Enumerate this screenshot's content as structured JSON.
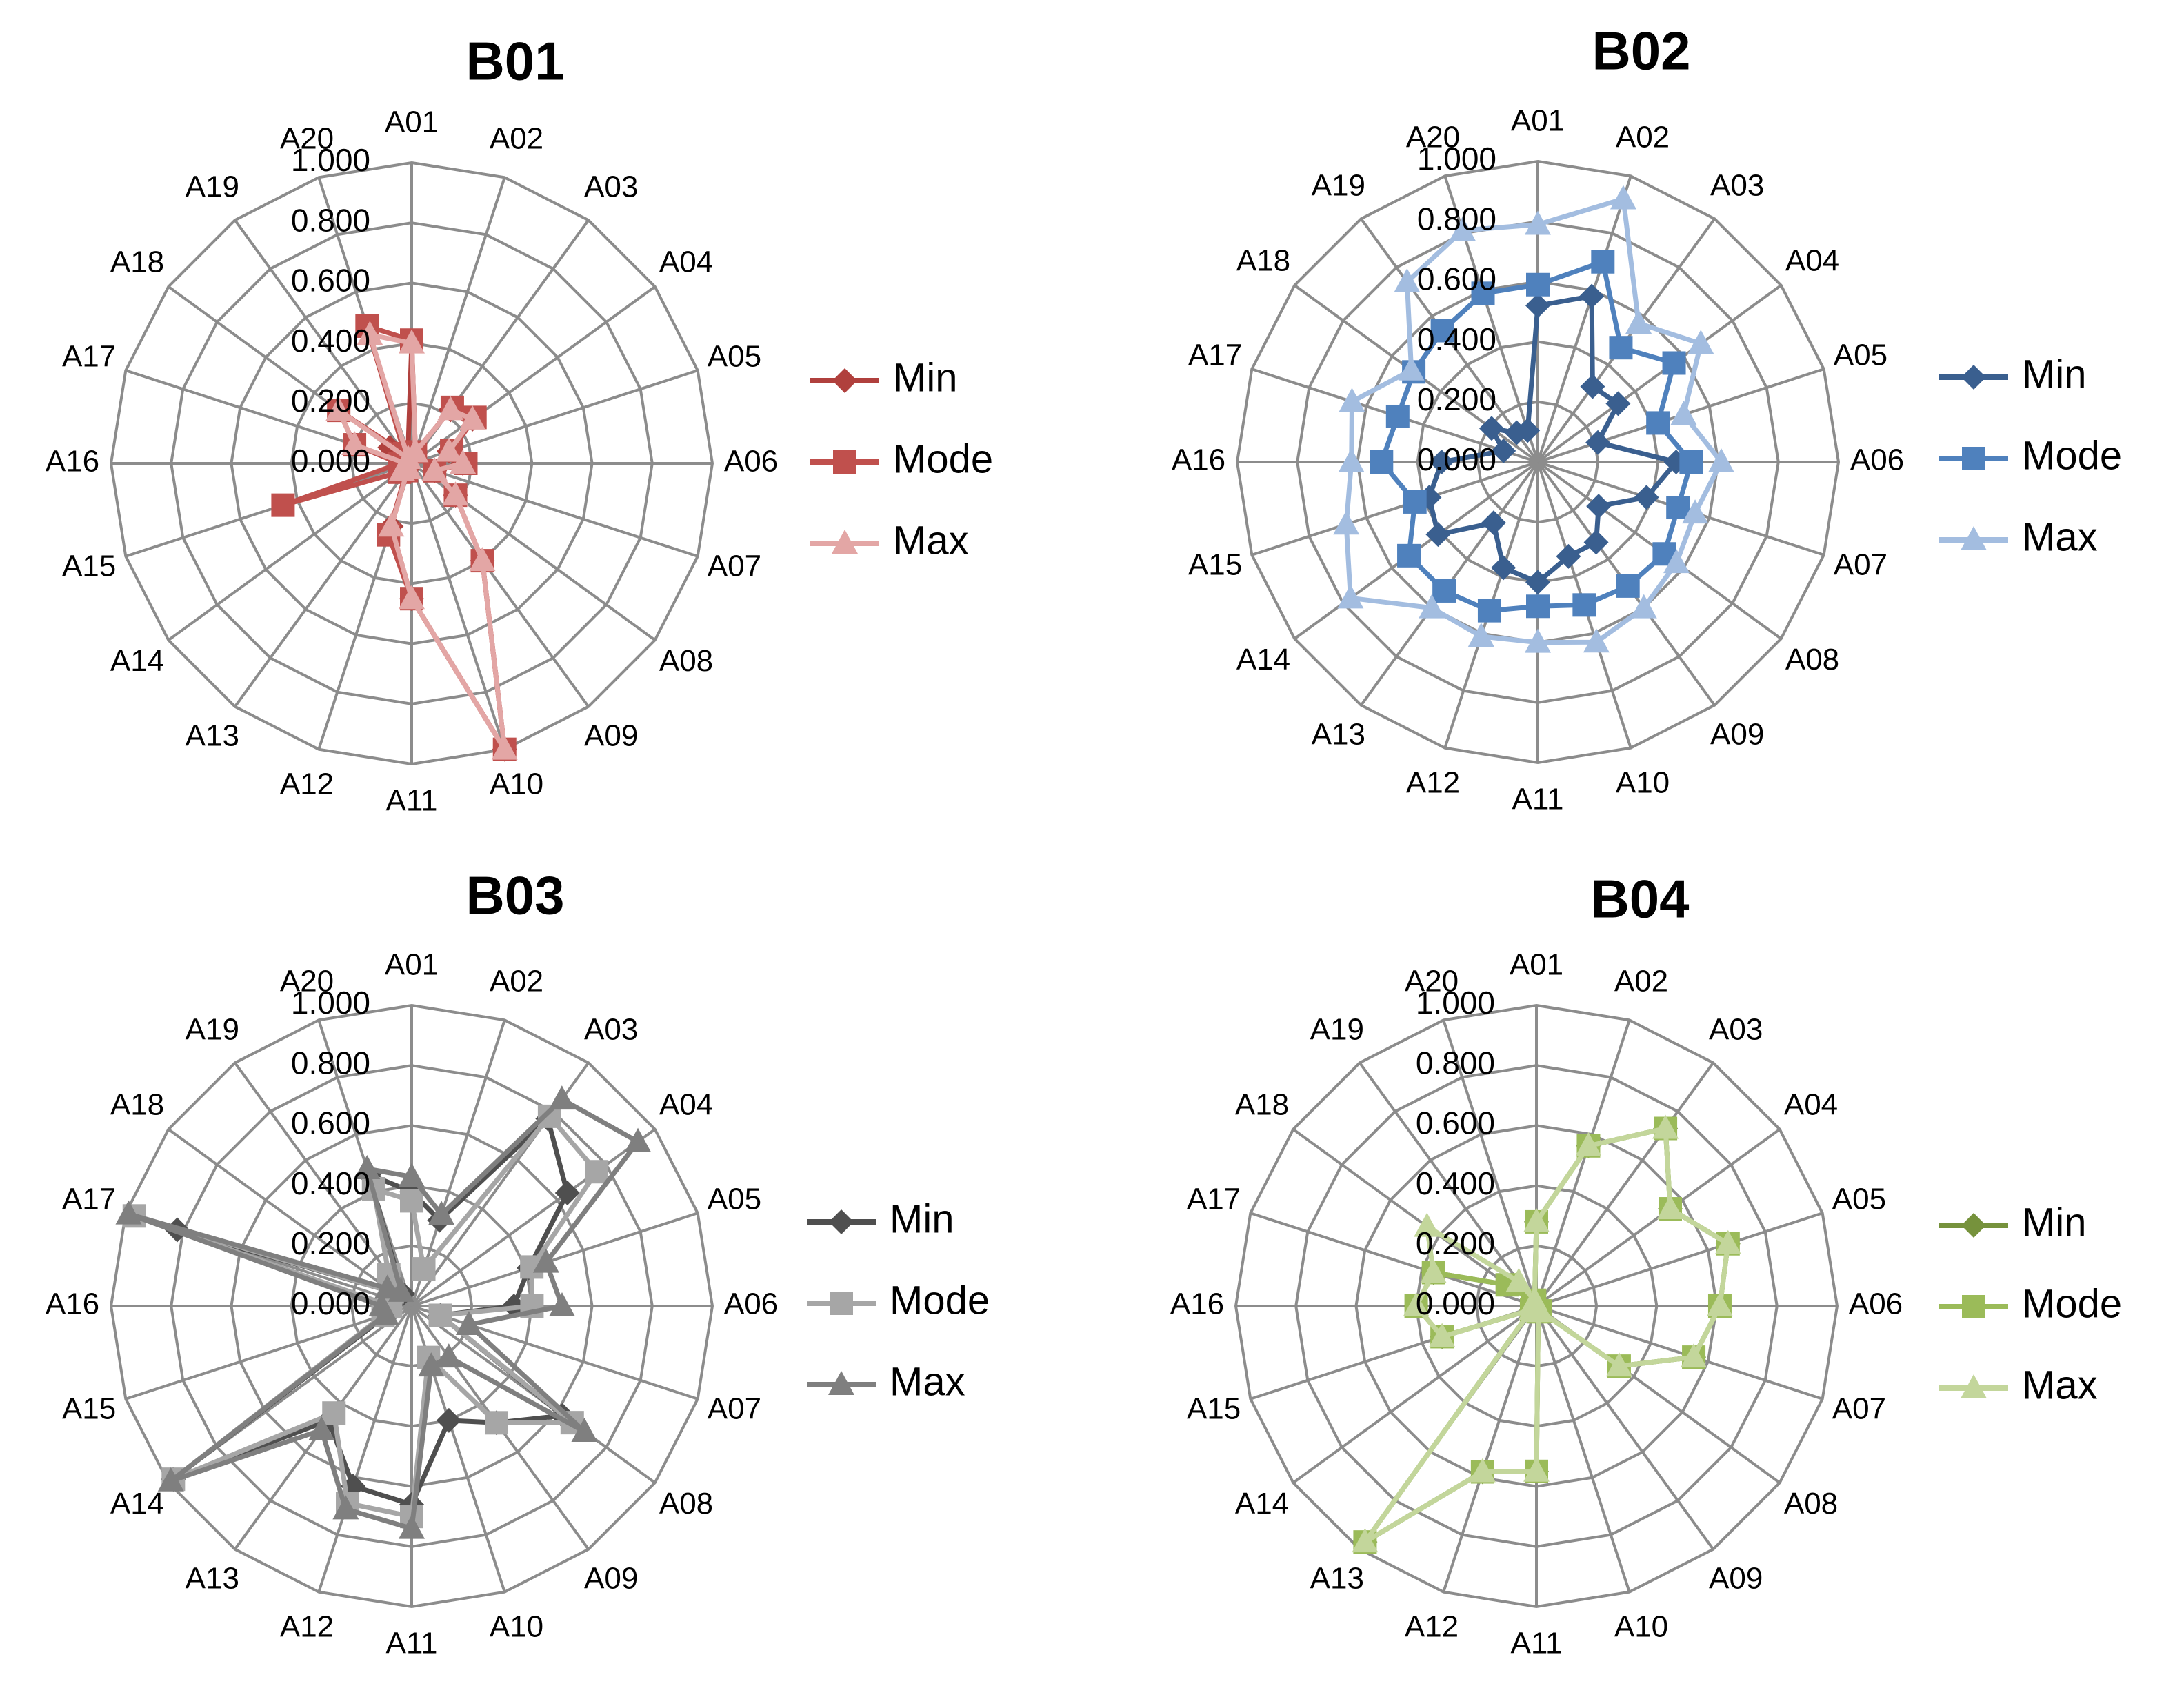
{
  "chart_data": [
    {
      "type": "radar",
      "title": "B01",
      "categories": [
        "A01",
        "A02",
        "A03",
        "A04",
        "A05",
        "A06",
        "A07",
        "A08",
        "A09",
        "A10",
        "A11",
        "A12",
        "A13",
        "A14",
        "A15",
        "A16",
        "A17",
        "A18",
        "A19",
        "A20"
      ],
      "ylim": [
        0,
        1
      ],
      "ticks": [
        "0.000",
        "0.200",
        "0.400",
        "0.600",
        "0.800",
        "1.000"
      ],
      "grid": true,
      "legend": "right",
      "series": [
        {
          "name": "Min",
          "marker": "diamond",
          "color": "#b0403d",
          "values": [
            0.4,
            0.04,
            0.22,
            0.25,
            0.13,
            0.17,
            0.08,
            0.18,
            0.4,
            1.0,
            0.45,
            0.22,
            0.02,
            0.04,
            0.03,
            0.02,
            0.02,
            0.09,
            0.02,
            0.04
          ]
        },
        {
          "name": "Mode",
          "marker": "square",
          "color": "#c0504d",
          "values": [
            0.41,
            0.04,
            0.23,
            0.26,
            0.14,
            0.18,
            0.08,
            0.18,
            0.4,
            1.0,
            0.45,
            0.25,
            0.03,
            0.05,
            0.45,
            0.04,
            0.2,
            0.3,
            0.04,
            0.48
          ]
        },
        {
          "name": "Max",
          "marker": "triangle",
          "color": "#e3a6a5",
          "values": [
            0.4,
            0.04,
            0.22,
            0.25,
            0.13,
            0.17,
            0.08,
            0.18,
            0.4,
            1.0,
            0.45,
            0.22,
            0.02,
            0.04,
            0.02,
            0.02,
            0.2,
            0.3,
            0.02,
            0.45
          ]
        }
      ]
    },
    {
      "type": "radar",
      "title": "B02",
      "categories": [
        "A01",
        "A02",
        "A03",
        "A04",
        "A05",
        "A06",
        "A07",
        "A08",
        "A09",
        "A10",
        "A11",
        "A12",
        "A13",
        "A14",
        "A15",
        "A16",
        "A17",
        "A18",
        "A19",
        "A20"
      ],
      "ylim": [
        0,
        1
      ],
      "ticks": [
        "0.000",
        "0.200",
        "0.400",
        "0.600",
        "0.800",
        "1.000"
      ],
      "grid": true,
      "legend": "right",
      "series": [
        {
          "name": "Min",
          "marker": "diamond",
          "color": "#3a5f8f",
          "values": [
            0.52,
            0.58,
            0.31,
            0.33,
            0.21,
            0.46,
            0.38,
            0.25,
            0.33,
            0.33,
            0.4,
            0.37,
            0.25,
            0.41,
            0.38,
            0.32,
            0.12,
            0.19,
            0.12,
            0.11
          ]
        },
        {
          "name": "Mode",
          "marker": "square",
          "color": "#4f81bd",
          "values": [
            0.59,
            0.7,
            0.47,
            0.56,
            0.42,
            0.51,
            0.49,
            0.52,
            0.51,
            0.5,
            0.48,
            0.52,
            0.53,
            0.53,
            0.43,
            0.52,
            0.49,
            0.51,
            0.54,
            0.59
          ]
        },
        {
          "name": "Max",
          "marker": "triangle",
          "color": "#a3bde0",
          "values": [
            0.79,
            0.92,
            0.57,
            0.67,
            0.51,
            0.61,
            0.55,
            0.57,
            0.6,
            0.63,
            0.6,
            0.61,
            0.6,
            0.77,
            0.67,
            0.62,
            0.65,
            0.52,
            0.74,
            0.81
          ]
        }
      ]
    },
    {
      "type": "radar",
      "title": "B03",
      "categories": [
        "A01",
        "A02",
        "A03",
        "A04",
        "A05",
        "A06",
        "A07",
        "A08",
        "A09",
        "A10",
        "A11",
        "A12",
        "A13",
        "A14",
        "A15",
        "A16",
        "A17",
        "A18",
        "A19",
        "A20"
      ],
      "ylim": [
        0,
        1
      ],
      "ticks": [
        "0.000",
        "0.200",
        "0.400",
        "0.600",
        "0.800",
        "1.000"
      ],
      "grid": true,
      "legend": "right",
      "series": [
        {
          "name": "Min",
          "marker": "diamond",
          "color": "#4f4f4f",
          "values": [
            0.38,
            0.3,
            0.77,
            0.64,
            0.41,
            0.34,
            0.1,
            0.62,
            0.48,
            0.4,
            0.66,
            0.63,
            0.47,
            0.98,
            0.08,
            0.09,
            0.82,
            0.08,
            0.05,
            0.46
          ]
        },
        {
          "name": "Mode",
          "marker": "square",
          "color": "#a6a6a6",
          "values": [
            0.35,
            0.13,
            0.78,
            0.76,
            0.42,
            0.4,
            0.1,
            0.66,
            0.48,
            0.18,
            0.7,
            0.69,
            0.44,
            0.98,
            0.1,
            0.07,
            0.97,
            0.08,
            0.13,
            0.41
          ]
        },
        {
          "name": "Max",
          "marker": "triangle",
          "color": "#7f7f7f",
          "values": [
            0.43,
            0.32,
            0.85,
            0.93,
            0.47,
            0.5,
            0.2,
            0.71,
            0.21,
            0.21,
            0.74,
            0.71,
            0.51,
            0.99,
            0.09,
            0.1,
            0.99,
            0.1,
            0.06,
            0.48
          ]
        }
      ]
    },
    {
      "type": "radar",
      "title": "B04",
      "categories": [
        "A01",
        "A02",
        "A03",
        "A04",
        "A05",
        "A06",
        "A07",
        "A08",
        "A09",
        "A10",
        "A11",
        "A12",
        "A13",
        "A14",
        "A15",
        "A16",
        "A17",
        "A18",
        "A19",
        "A20"
      ],
      "ylim": [
        0,
        1
      ],
      "ticks": [
        "0.000",
        "0.200",
        "0.400",
        "0.600",
        "0.800",
        "1.000"
      ],
      "grid": true,
      "legend": "right",
      "series": [
        {
          "name": "Min",
          "marker": "diamond",
          "color": "#76923c",
          "values": [
            0.28,
            0.56,
            0.73,
            0.55,
            0.67,
            0.61,
            0.55,
            0.34,
            0.02,
            0.02,
            0.55,
            0.58,
            0.97,
            0.02,
            0.33,
            0.4,
            0.36,
            0.12,
            0.02,
            0.02
          ]
        },
        {
          "name": "Mode",
          "marker": "square",
          "color": "#9bbb59",
          "values": [
            0.28,
            0.56,
            0.73,
            0.55,
            0.67,
            0.61,
            0.55,
            0.34,
            0.02,
            0.02,
            0.55,
            0.58,
            0.97,
            0.02,
            0.33,
            0.4,
            0.36,
            0.12,
            0.02,
            0.02
          ]
        },
        {
          "name": "Max",
          "marker": "triangle",
          "color": "#c3d69b",
          "values": [
            0.28,
            0.56,
            0.73,
            0.55,
            0.67,
            0.61,
            0.55,
            0.34,
            0.02,
            0.02,
            0.55,
            0.58,
            0.97,
            0.02,
            0.33,
            0.4,
            0.36,
            0.45,
            0.1,
            0.02
          ]
        }
      ]
    }
  ]
}
